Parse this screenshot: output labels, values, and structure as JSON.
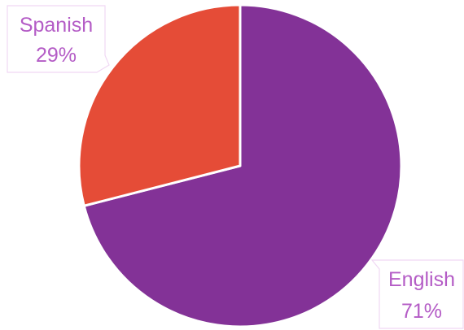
{
  "chart_data": {
    "type": "pie",
    "slices": [
      {
        "label": "English",
        "value": 71,
        "value_label": "71%",
        "color": "#833297"
      },
      {
        "label": "Spanish",
        "value": 29,
        "value_label": "29%",
        "color": "#E54C37"
      }
    ],
    "legend": "none",
    "data_labels": "callout boxes with category name and percentage",
    "label_color": "#B45CC6",
    "slice_border_color": "#FFFFFF"
  }
}
